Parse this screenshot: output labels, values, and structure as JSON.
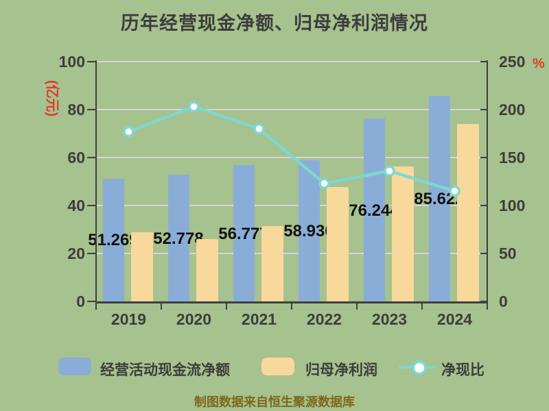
{
  "title": "历年经营现金净额、归母净利润情况",
  "footer": "制图数据来自恒生聚源数据库",
  "colors": {
    "background": "#a6c28e",
    "bar_cashflow": "#8aadd8",
    "bar_profit": "#f9d89b",
    "line_ratio": "#7ed7d3",
    "axis_text": "#3d3d3d",
    "axis_unit_red": "#e23b2d",
    "grid_line": "#d5d5d5",
    "axis_line": "#3f3f3f",
    "value_label": "#111111",
    "footer_text": "#7f661b"
  },
  "chart_data": {
    "type": "bar",
    "subtype": "grouped-bars-with-line",
    "title": "历年经营现金净额、归母净利润情况",
    "categories": [
      "2019",
      "2020",
      "2021",
      "2022",
      "2023",
      "2024"
    ],
    "series": [
      {
        "name": "经营活动现金流净额",
        "type": "bar",
        "axis": "left",
        "color": "#8aadd8",
        "values": [
          51.269,
          52.778,
          56.777,
          58.936,
          76.244,
          85.622
        ],
        "labels": [
          "51.269",
          "52.778",
          "56.777",
          "58.936",
          "76.244",
          "85.622"
        ]
      },
      {
        "name": "归母净利润",
        "type": "bar",
        "axis": "left",
        "color": "#f9d89b",
        "values": [
          29.0,
          25.9,
          31.5,
          47.8,
          56.2,
          74.1
        ]
      },
      {
        "name": "净现比",
        "type": "line",
        "axis": "right",
        "color": "#7ed7d3",
        "marker": "circle",
        "values": [
          177,
          203,
          180,
          123,
          136,
          115
        ]
      }
    ],
    "left_axis": {
      "unit": "(亿元)",
      "min": 0,
      "max": 100,
      "ticks": [
        "100",
        "80",
        "60",
        "40",
        "20",
        "0"
      ]
    },
    "right_axis": {
      "unit": "%",
      "min": 0,
      "max": 250,
      "ticks": [
        "250",
        "200",
        "150",
        "100",
        "50",
        "0"
      ]
    },
    "grid": "horizontal",
    "legend_position": "bottom"
  },
  "legend": {
    "items": [
      {
        "label": "经营活动现金流净额",
        "swatch": "blue-rounded-rect"
      },
      {
        "label": "归母净利润",
        "swatch": "yellow-rounded-rect"
      },
      {
        "label": "净现比",
        "swatch": "teal-line-circle-marker"
      }
    ]
  }
}
